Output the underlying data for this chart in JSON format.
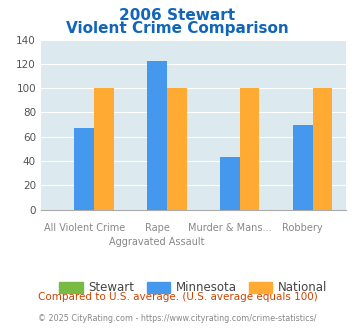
{
  "title_line1": "2006 Stewart",
  "title_line2": "Violent Crime Comparison",
  "cat_top": [
    "",
    "Rape",
    "Murder & Mans...",
    ""
  ],
  "cat_bottom": [
    "All Violent Crime",
    "Aggravated Assault",
    "",
    "Robbery"
  ],
  "stewart": [
    0,
    0,
    0,
    0
  ],
  "minnesota": [
    67,
    122,
    43,
    70
  ],
  "national": [
    100,
    100,
    100,
    100
  ],
  "color_stewart": "#77bb44",
  "color_minnesota": "#4499ee",
  "color_national": "#ffaa33",
  "ylim": [
    0,
    140
  ],
  "yticks": [
    0,
    20,
    40,
    60,
    80,
    100,
    120,
    140
  ],
  "bg_color": "#dce9ef",
  "footnote": "Compared to U.S. average. (U.S. average equals 100)",
  "copyright": "© 2025 CityRating.com - https://www.cityrating.com/crime-statistics/",
  "title_color": "#1166bb",
  "footnote_color": "#cc4400",
  "copyright_color": "#888888"
}
